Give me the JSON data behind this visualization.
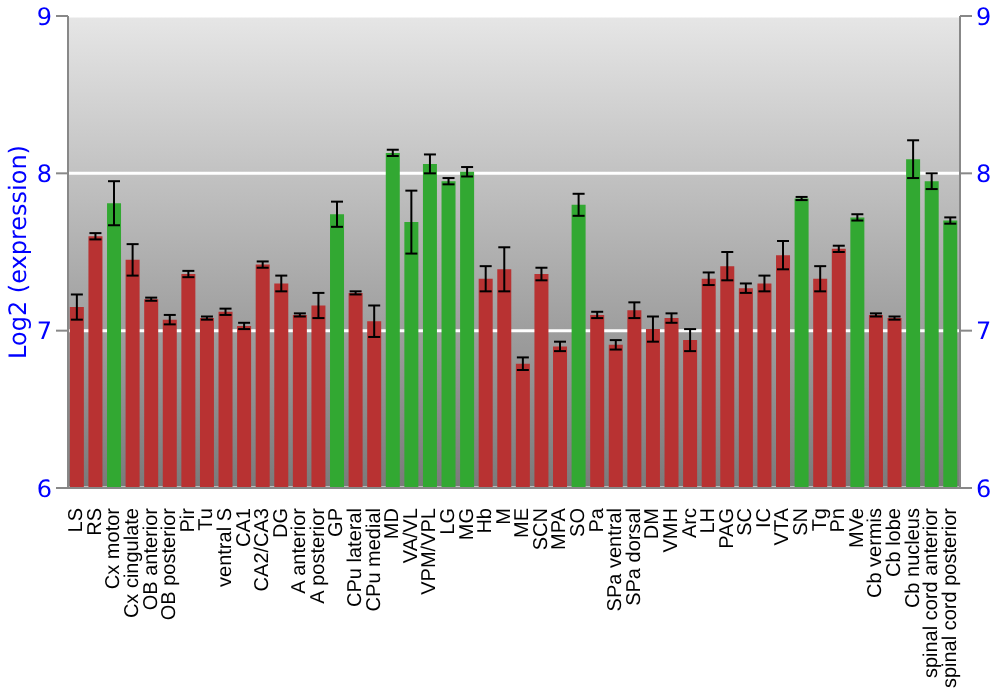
{
  "chart_data": {
    "type": "bar",
    "ylabel": "Log2 (expression)",
    "categories": [
      "LS",
      "RS",
      "Cx motor",
      "Cx cingulate",
      "OB anterior",
      "OB posterior",
      "Pir",
      "Tu",
      "ventral S",
      "CA1",
      "CA2/CA3",
      "DG",
      "A anterior",
      "A posterior",
      "GP",
      "CPu lateral",
      "CPu medial",
      "MD",
      "VA/VL",
      "VPM/VPL",
      "LG",
      "MG",
      "Hb",
      "M",
      "ME",
      "SCN",
      "MPA",
      "SO",
      "Pa",
      "SPa ventral",
      "SPa dorsal",
      "DM",
      "VMH",
      "Arc",
      "LH",
      "PAG",
      "SC",
      "IC",
      "VTA",
      "SN",
      "Tg",
      "Pn",
      "MVe",
      "Cb vermis",
      "Cb lobe",
      "Cb nucleus",
      "spinal cord anterior",
      "spinal cord posterior"
    ],
    "values": [
      7.15,
      7.6,
      7.81,
      7.45,
      7.2,
      7.07,
      7.36,
      7.08,
      7.12,
      7.03,
      7.42,
      7.3,
      7.1,
      7.16,
      7.74,
      7.24,
      7.06,
      8.13,
      7.69,
      8.06,
      7.95,
      8.01,
      7.33,
      7.39,
      6.79,
      7.36,
      6.9,
      7.8,
      7.1,
      6.91,
      7.13,
      7.01,
      7.08,
      6.94,
      7.33,
      7.41,
      7.27,
      7.3,
      7.48,
      7.84,
      7.33,
      7.52,
      7.72,
      7.1,
      7.08,
      8.09,
      7.95,
      7.7
    ],
    "errors": [
      0.08,
      0.02,
      0.14,
      0.1,
      0.01,
      0.03,
      0.02,
      0.01,
      0.02,
      0.02,
      0.02,
      0.05,
      0.01,
      0.08,
      0.08,
      0.01,
      0.1,
      0.02,
      0.2,
      0.06,
      0.02,
      0.03,
      0.08,
      0.14,
      0.04,
      0.04,
      0.03,
      0.07,
      0.02,
      0.03,
      0.05,
      0.08,
      0.03,
      0.07,
      0.04,
      0.09,
      0.03,
      0.05,
      0.09,
      0.01,
      0.08,
      0.02,
      0.02,
      0.01,
      0.01,
      0.12,
      0.05,
      0.02
    ],
    "colors": [
      "#b83232",
      "#b83232",
      "#32a832",
      "#b83232",
      "#b83232",
      "#b83232",
      "#b83232",
      "#b83232",
      "#b83232",
      "#b83232",
      "#b83232",
      "#b83232",
      "#b83232",
      "#b83232",
      "#32a832",
      "#b83232",
      "#b83232",
      "#32a832",
      "#32a832",
      "#32a832",
      "#32a832",
      "#32a832",
      "#b83232",
      "#b83232",
      "#b83232",
      "#b83232",
      "#b83232",
      "#32a832",
      "#b83232",
      "#b83232",
      "#b83232",
      "#b83232",
      "#b83232",
      "#b83232",
      "#b83232",
      "#b83232",
      "#b83232",
      "#b83232",
      "#b83232",
      "#32a832",
      "#b83232",
      "#b83232",
      "#32a832",
      "#b83232",
      "#b83232",
      "#32a832",
      "#32a832",
      "#32a832"
    ],
    "ylim": [
      6,
      9
    ],
    "yticks": [
      6,
      7,
      8,
      9
    ],
    "y2lim": [
      6,
      9
    ],
    "y2ticks": [
      6,
      7,
      8,
      9
    ],
    "grid": "y"
  }
}
